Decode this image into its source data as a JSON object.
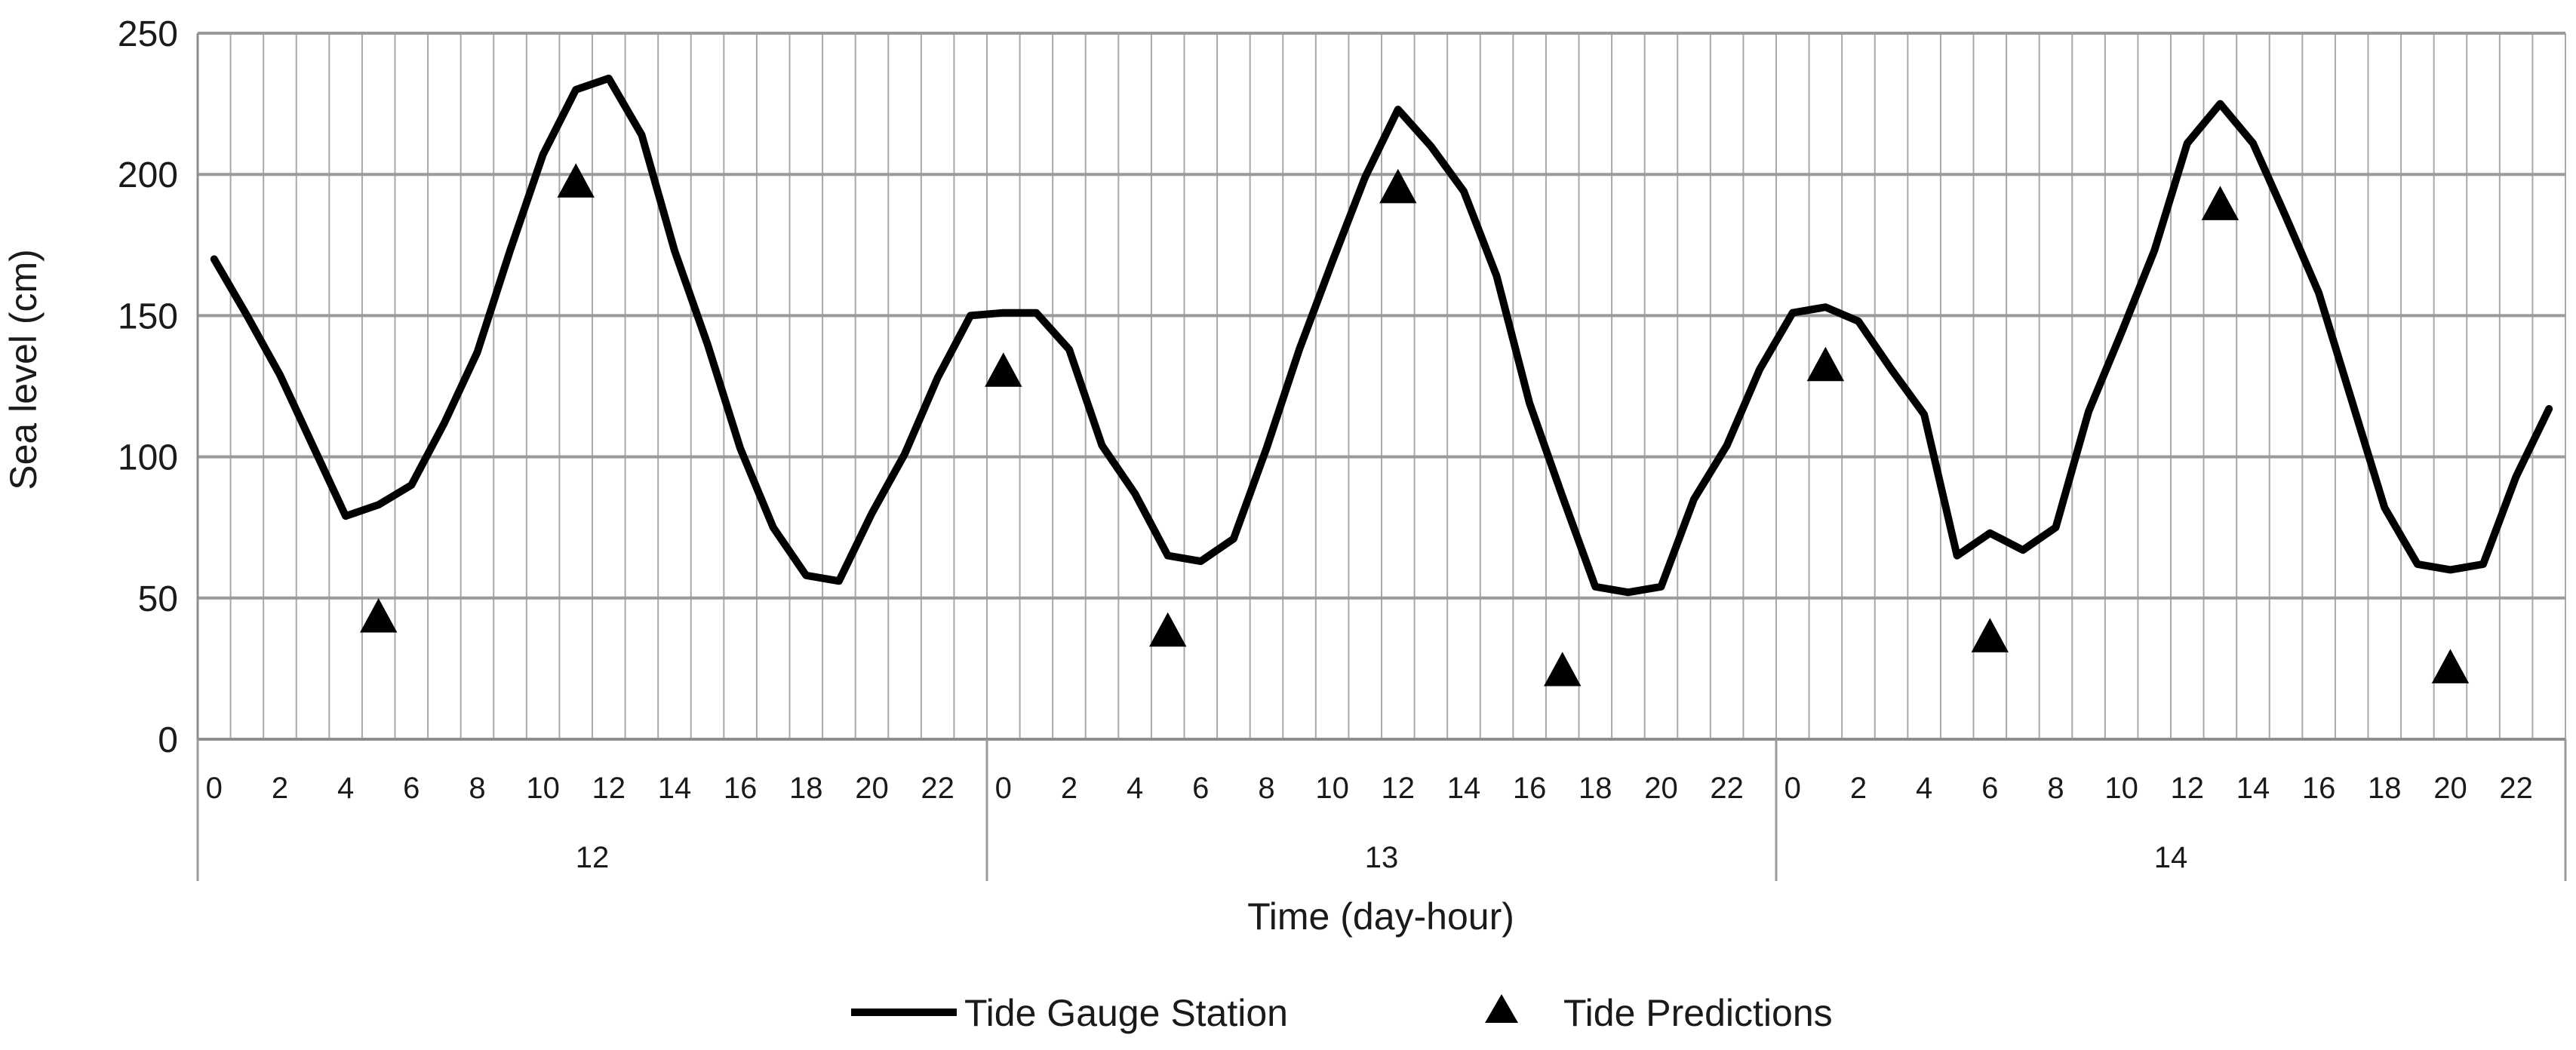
{
  "chart_data": {
    "type": "line",
    "xlabel": "Time (day-hour)",
    "ylabel": "Sea level (cm)",
    "ylim": [
      0,
      250
    ],
    "yticks": [
      0,
      50,
      100,
      150,
      200,
      250
    ],
    "grid": true,
    "legend_position": "bottom",
    "days": [
      "12",
      "13",
      "14"
    ],
    "hour_tick_labels": [
      "0",
      "2",
      "4",
      "6",
      "8",
      "10",
      "12",
      "14",
      "16",
      "18",
      "20",
      "22"
    ],
    "series": [
      {
        "name": "Tide Gauge Station",
        "kind": "line",
        "color": "#000000",
        "values": [
          170,
          150,
          129,
          104,
          79,
          83,
          90,
          112,
          137,
          173,
          207,
          230,
          234,
          214,
          173,
          140,
          103,
          75,
          58,
          56,
          80,
          101,
          128,
          150,
          151,
          151,
          138,
          104,
          87,
          65,
          63,
          71,
          103,
          138,
          169,
          199,
          223,
          210,
          194,
          164,
          119,
          86,
          54,
          52,
          54,
          85,
          104,
          131,
          151,
          153,
          148,
          131,
          115,
          65,
          73,
          67,
          75,
          116,
          144,
          173,
          211,
          225,
          211,
          185,
          158,
          120,
          82,
          62,
          60,
          62,
          93,
          117
        ]
      },
      {
        "name": "Tide Predictions",
        "kind": "marker",
        "marker": "triangle",
        "color": "#000000",
        "points": [
          {
            "day": "12",
            "hour": 5,
            "value": 43
          },
          {
            "day": "12",
            "hour": 11,
            "value": 197
          },
          {
            "day": "13",
            "hour": 0,
            "value": 130
          },
          {
            "day": "13",
            "hour": 5,
            "value": 38
          },
          {
            "day": "13",
            "hour": 12,
            "value": 195
          },
          {
            "day": "13",
            "hour": 17,
            "value": 24
          },
          {
            "day": "14",
            "hour": 1,
            "value": 132
          },
          {
            "day": "14",
            "hour": 6,
            "value": 36
          },
          {
            "day": "14",
            "hour": 13,
            "value": 189
          },
          {
            "day": "14",
            "hour": 20,
            "value": 25
          }
        ]
      }
    ]
  }
}
